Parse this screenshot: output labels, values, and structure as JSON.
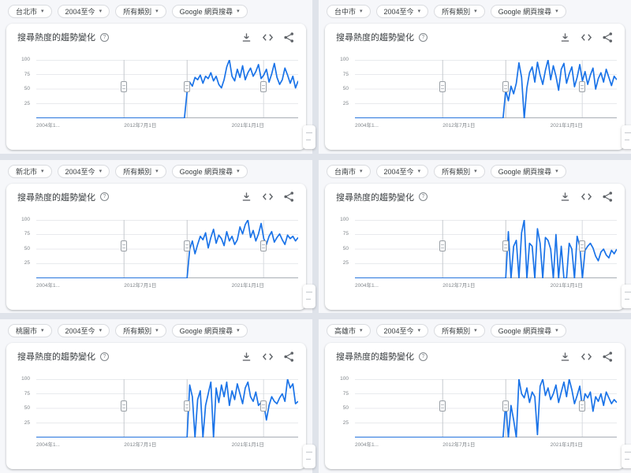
{
  "page": {
    "background": "#dfe3ea",
    "line_color": "#1a73e8"
  },
  "shared": {
    "card_title": "搜尋熱度的趨勢變化",
    "chips": {
      "time": "2004至今",
      "category": "所有類別",
      "search_type": "Google 網頁搜尋"
    },
    "icons": {
      "help": "question-mark-circle-icon",
      "download": "download-icon",
      "embed": "code-embed-icon",
      "share": "share-icon",
      "chip_caret": "chevron-down-icon"
    },
    "y_ticks": [
      "100",
      "75",
      "50",
      "25"
    ],
    "x_ticks": [
      "2004年1...",
      "2012年7月1日",
      "2021年1月1日"
    ],
    "line_color": "#1a73e8"
  },
  "panels": [
    {
      "city": "台北市"
    },
    {
      "city": "台中市"
    },
    {
      "city": "新北市"
    },
    {
      "city": "台南市"
    },
    {
      "city": "桃園市"
    },
    {
      "city": "高雄市"
    }
  ],
  "chart_data": [
    {
      "type": "line",
      "region": "台北市",
      "title": "搜尋熱度的趨勢變化",
      "xlabel": "",
      "ylabel": "",
      "ylim": [
        0,
        100
      ],
      "y_ticks": [
        25,
        50,
        75,
        100
      ],
      "x_tick_labels": [
        "2004年1...",
        "2012年7月1日",
        "2021年1月1日"
      ],
      "note_fracs": [
        0.335,
        0.576,
        0.868
      ],
      "values": [
        0,
        0,
        0,
        0,
        0,
        0,
        0,
        0,
        0,
        0,
        0,
        0,
        0,
        0,
        0,
        0,
        0,
        0,
        0,
        0,
        0,
        0,
        0,
        0,
        0,
        0,
        0,
        0,
        0,
        0,
        0,
        0,
        0,
        0,
        0,
        0,
        0,
        0,
        0,
        0,
        0,
        0,
        0,
        0,
        0,
        0,
        0,
        0,
        0,
        0,
        0,
        0,
        0,
        0,
        0,
        0,
        0,
        45,
        62,
        55,
        70,
        66,
        74,
        60,
        72,
        68,
        78,
        64,
        72,
        58,
        52,
        66,
        88,
        100,
        72,
        64,
        84,
        70,
        90,
        66,
        78,
        86,
        72,
        80,
        92,
        68,
        74,
        84,
        62,
        76,
        94,
        70,
        58,
        66,
        86,
        74,
        60,
        72,
        52,
        64
      ]
    },
    {
      "type": "line",
      "region": "台中市",
      "title": "搜尋熱度的趨勢變化",
      "xlabel": "",
      "ylabel": "",
      "ylim": [
        0,
        100
      ],
      "y_ticks": [
        25,
        50,
        75,
        100
      ],
      "x_tick_labels": [
        "2004年1...",
        "2012年7月1日",
        "2021年1月1日"
      ],
      "note_fracs": [
        0.335,
        0.576,
        0.868
      ],
      "values": [
        0,
        0,
        0,
        0,
        0,
        0,
        0,
        0,
        0,
        0,
        0,
        0,
        0,
        0,
        0,
        0,
        0,
        0,
        0,
        0,
        0,
        0,
        0,
        0,
        0,
        0,
        0,
        0,
        0,
        0,
        0,
        0,
        0,
        0,
        0,
        0,
        0,
        0,
        0,
        0,
        0,
        0,
        0,
        0,
        0,
        0,
        0,
        0,
        0,
        0,
        0,
        0,
        0,
        0,
        0,
        0,
        0,
        48,
        30,
        55,
        42,
        60,
        95,
        70,
        0,
        52,
        78,
        88,
        62,
        96,
        74,
        58,
        82,
        100,
        66,
        90,
        72,
        48,
        84,
        94,
        60,
        76,
        88,
        54,
        70,
        92,
        64,
        80,
        58,
        74,
        86,
        50,
        68,
        78,
        62,
        84,
        70,
        56,
        72,
        66
      ]
    },
    {
      "type": "line",
      "region": "新北市",
      "title": "搜尋熱度的趨勢變化",
      "xlabel": "",
      "ylabel": "",
      "ylim": [
        0,
        100
      ],
      "y_ticks": [
        25,
        50,
        75,
        100
      ],
      "x_tick_labels": [
        "2004年1...",
        "2012年7月1日",
        "2021年1月1日"
      ],
      "note_fracs": [
        0.335,
        0.576,
        0.868
      ],
      "values": [
        0,
        0,
        0,
        0,
        0,
        0,
        0,
        0,
        0,
        0,
        0,
        0,
        0,
        0,
        0,
        0,
        0,
        0,
        0,
        0,
        0,
        0,
        0,
        0,
        0,
        0,
        0,
        0,
        0,
        0,
        0,
        0,
        0,
        0,
        0,
        0,
        0,
        0,
        0,
        0,
        0,
        0,
        0,
        0,
        0,
        0,
        0,
        0,
        0,
        0,
        0,
        0,
        0,
        0,
        0,
        0,
        0,
        0,
        50,
        64,
        42,
        58,
        72,
        66,
        78,
        52,
        70,
        84,
        60,
        74,
        68,
        56,
        80,
        64,
        72,
        58,
        66,
        88,
        76,
        92,
        100,
        70,
        82,
        64,
        76,
        94,
        68,
        58,
        72,
        80,
        62,
        70,
        76,
        66,
        58,
        74,
        68,
        72,
        64,
        70
      ]
    },
    {
      "type": "line",
      "region": "台南市",
      "title": "搜尋熱度的趨勢變化",
      "xlabel": "",
      "ylabel": "",
      "ylim": [
        0,
        100
      ],
      "y_ticks": [
        25,
        50,
        75,
        100
      ],
      "x_tick_labels": [
        "2004年1...",
        "2012年7月1日",
        "2021年1月1日"
      ],
      "note_fracs": [
        0.335,
        0.576,
        0.868
      ],
      "values": [
        0,
        0,
        0,
        0,
        0,
        0,
        0,
        0,
        0,
        0,
        0,
        0,
        0,
        0,
        0,
        0,
        0,
        0,
        0,
        0,
        0,
        0,
        0,
        0,
        0,
        0,
        0,
        0,
        0,
        0,
        0,
        0,
        0,
        0,
        0,
        0,
        0,
        0,
        0,
        0,
        0,
        0,
        0,
        0,
        0,
        0,
        0,
        0,
        0,
        0,
        0,
        0,
        0,
        0,
        0,
        0,
        0,
        0,
        80,
        0,
        55,
        65,
        0,
        78,
        100,
        0,
        60,
        55,
        0,
        85,
        60,
        0,
        70,
        65,
        50,
        0,
        75,
        0,
        55,
        0,
        0,
        60,
        50,
        0,
        72,
        55,
        0,
        48,
        55,
        60,
        52,
        38,
        30,
        45,
        50,
        40,
        35,
        48,
        42,
        50
      ]
    },
    {
      "type": "line",
      "region": "桃園市",
      "title": "搜尋熱度的趨勢變化",
      "xlabel": "",
      "ylabel": "",
      "ylim": [
        0,
        100
      ],
      "y_ticks": [
        25,
        50,
        75,
        100
      ],
      "x_tick_labels": [
        "2004年1...",
        "2012年7月1日",
        "2021年1月1日"
      ],
      "note_fracs": [
        0.335,
        0.576,
        0.868
      ],
      "values": [
        0,
        0,
        0,
        0,
        0,
        0,
        0,
        0,
        0,
        0,
        0,
        0,
        0,
        0,
        0,
        0,
        0,
        0,
        0,
        0,
        0,
        0,
        0,
        0,
        0,
        0,
        0,
        0,
        0,
        0,
        0,
        0,
        0,
        0,
        0,
        0,
        0,
        0,
        0,
        0,
        0,
        0,
        0,
        0,
        0,
        0,
        0,
        0,
        0,
        0,
        0,
        0,
        0,
        0,
        0,
        0,
        0,
        0,
        90,
        70,
        0,
        65,
        80,
        0,
        55,
        75,
        95,
        0,
        85,
        60,
        90,
        70,
        95,
        55,
        80,
        65,
        92,
        75,
        58,
        85,
        95,
        70,
        62,
        78,
        55,
        60,
        58,
        30,
        55,
        70,
        62,
        58,
        68,
        75,
        62,
        100,
        85,
        92,
        58,
        62
      ]
    },
    {
      "type": "line",
      "region": "高雄市",
      "title": "搜尋熱度的趨勢變化",
      "xlabel": "",
      "ylabel": "",
      "ylim": [
        0,
        100
      ],
      "y_ticks": [
        25,
        50,
        75,
        100
      ],
      "x_tick_labels": [
        "2004年1...",
        "2012年7月1日",
        "2021年1月1日"
      ],
      "note_fracs": [
        0.335,
        0.576,
        0.868
      ],
      "values": [
        0,
        0,
        0,
        0,
        0,
        0,
        0,
        0,
        0,
        0,
        0,
        0,
        0,
        0,
        0,
        0,
        0,
        0,
        0,
        0,
        0,
        0,
        0,
        0,
        0,
        0,
        0,
        0,
        0,
        0,
        0,
        0,
        0,
        0,
        0,
        0,
        0,
        0,
        0,
        0,
        0,
        0,
        0,
        0,
        0,
        0,
        0,
        0,
        0,
        0,
        0,
        0,
        0,
        0,
        0,
        0,
        0,
        60,
        0,
        55,
        30,
        0,
        100,
        75,
        68,
        85,
        60,
        78,
        70,
        5,
        88,
        100,
        72,
        85,
        65,
        75,
        90,
        60,
        78,
        95,
        70,
        100,
        82,
        58,
        72,
        88,
        50,
        75,
        68,
        78,
        45,
        70,
        62,
        75,
        55,
        78,
        68,
        58,
        65,
        60
      ]
    }
  ]
}
